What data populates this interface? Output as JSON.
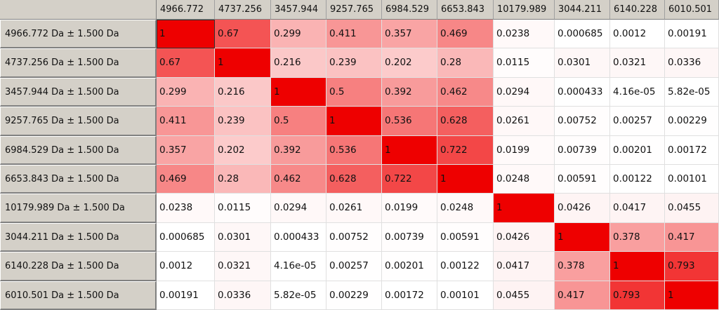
{
  "labels": [
    "4966.772",
    "4737.256",
    "3457.944",
    "9257.765",
    "6984.529",
    "6653.843",
    "10179.989",
    "3044.211",
    "6140.228",
    "6010.501"
  ],
  "row_labels": [
    "4966.772 Da ± 1.500 Da",
    "4737.256 Da ± 1.500 Da",
    "3457.944 Da ± 1.500 Da",
    "9257.765 Da ± 1.500 Da",
    "6984.529 Da ± 1.500 Da",
    "6653.843 Da ± 1.500 Da",
    "10179.989 Da ± 1.500 Da",
    "3044.211 Da ± 1.500 Da",
    "6140.228 Da ± 1.500 Da",
    "6010.501 Da ± 1.500 Da"
  ],
  "values": [
    [
      "1",
      "0.67",
      "0.299",
      "0.411",
      "0.357",
      "0.469",
      "0.0238",
      "0.000685",
      "0.0012",
      "0.00191"
    ],
    [
      "0.67",
      "1",
      "0.216",
      "0.239",
      "0.202",
      "0.28",
      "0.0115",
      "0.0301",
      "0.0321",
      "0.0336"
    ],
    [
      "0.299",
      "0.216",
      "1",
      "0.5",
      "0.392",
      "0.462",
      "0.0294",
      "0.000433",
      "4.16e-05",
      "5.82e-05"
    ],
    [
      "0.411",
      "0.239",
      "0.5",
      "1",
      "0.536",
      "0.628",
      "0.0261",
      "0.00752",
      "0.00257",
      "0.00229"
    ],
    [
      "0.357",
      "0.202",
      "0.392",
      "0.536",
      "1",
      "0.722",
      "0.0199",
      "0.00739",
      "0.00201",
      "0.00172"
    ],
    [
      "0.469",
      "0.28",
      "0.462",
      "0.628",
      "0.722",
      "1",
      "0.0248",
      "0.00591",
      "0.00122",
      "0.00101"
    ],
    [
      "0.0238",
      "0.0115",
      "0.0294",
      "0.0261",
      "0.0199",
      "0.0248",
      "1",
      "0.0426",
      "0.0417",
      "0.0455"
    ],
    [
      "0.000685",
      "0.0301",
      "0.000433",
      "0.00752",
      "0.00739",
      "0.00591",
      "0.0426",
      "1",
      "0.378",
      "0.417"
    ],
    [
      "0.0012",
      "0.0321",
      "4.16e-05",
      "0.00257",
      "0.00201",
      "0.00122",
      "0.0417",
      "0.378",
      "1",
      "0.793"
    ],
    [
      "0.00191",
      "0.0336",
      "5.82e-05",
      "0.00229",
      "0.00172",
      "0.00101",
      "0.0455",
      "0.417",
      "0.793",
      "1"
    ]
  ],
  "colors": {
    "high": "#ee0000",
    "low": "#ffffff"
  }
}
